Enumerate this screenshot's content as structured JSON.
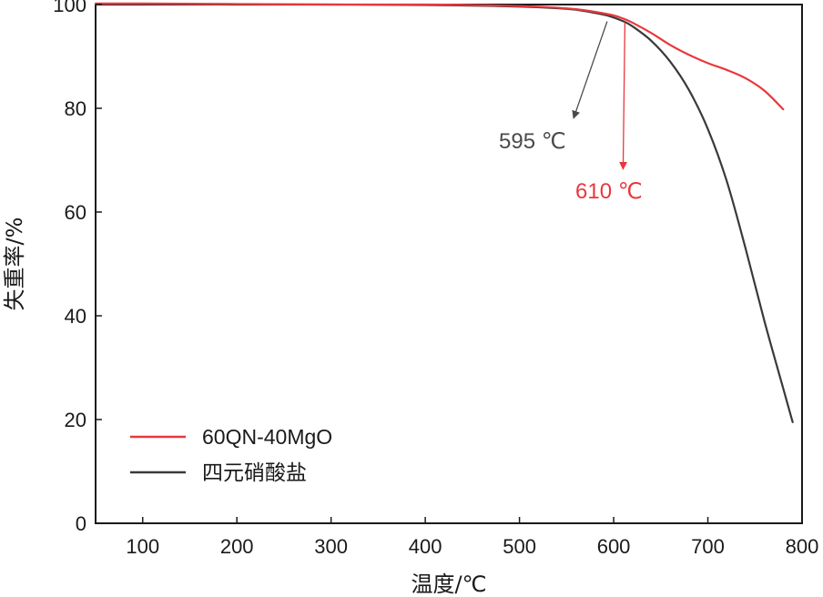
{
  "chart_data": {
    "type": "line",
    "xlabel": "温度/℃",
    "ylabel": "失重率/%",
    "xlim": [
      50,
      800
    ],
    "ylim": [
      0,
      100
    ],
    "xticks": [
      100,
      200,
      300,
      400,
      500,
      600,
      700,
      800
    ],
    "yticks": [
      0,
      20,
      40,
      60,
      80,
      100
    ],
    "grid": false,
    "legend_position": "bottom-left",
    "series": [
      {
        "name": "60QN-40MgO",
        "color": "#e8383d",
        "x": [
          50,
          100,
          200,
          300,
          400,
          450,
          500,
          540,
          560,
          580,
          600,
          610,
          620,
          640,
          660,
          680,
          700,
          720,
          740,
          760,
          780
        ],
        "y": [
          100.2,
          100.2,
          100.1,
          100.0,
          100.0,
          99.9,
          99.7,
          99.4,
          99.1,
          98.6,
          97.9,
          97.3,
          96.5,
          94.5,
          92.2,
          90.3,
          88.7,
          87.4,
          85.8,
          83.4,
          79.8
        ]
      },
      {
        "name": "四元硝酸盐",
        "color": "#3a3a3a",
        "x": [
          50,
          100,
          200,
          300,
          400,
          450,
          500,
          540,
          560,
          580,
          595,
          610,
          620,
          640,
          660,
          680,
          700,
          720,
          740,
          760,
          780,
          790
        ],
        "y": [
          100.1,
          100.1,
          100.0,
          100.0,
          99.9,
          99.8,
          99.6,
          99.3,
          99.0,
          98.4,
          97.8,
          96.8,
          95.8,
          93.0,
          89.0,
          83.5,
          76.0,
          66.0,
          53.0,
          39.0,
          26.0,
          19.5
        ]
      }
    ],
    "annotations": [
      {
        "text": "595 ℃",
        "color": "#4a4a4a",
        "x": 595,
        "y": 97.8
      },
      {
        "text": "610 ℃",
        "color": "#e8383d",
        "x": 610,
        "y": 97.3
      }
    ]
  }
}
